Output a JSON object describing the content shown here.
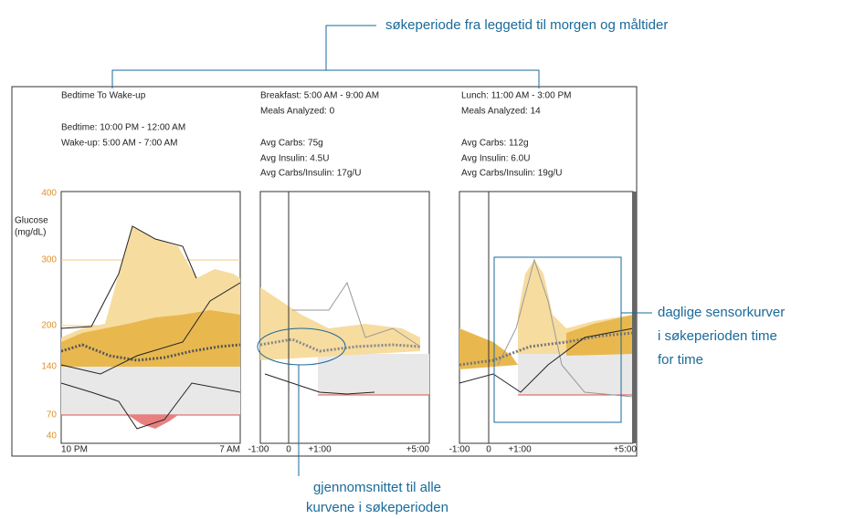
{
  "top_callout": "søkeperiode fra leggetid til morgen og måltider",
  "right_callout": {
    "lines": [
      "daglige sensorkurver",
      "i søkeperioden time",
      "for time"
    ]
  },
  "bottom_callout": {
    "lines": [
      "gjennomsnittet til alle",
      "kurvene i søkeperioden"
    ]
  },
  "y_axis": {
    "label_lines": [
      "Glucose",
      "(mg/dL)"
    ],
    "ticks": [
      "400",
      "300",
      "200",
      "140",
      "70",
      "40"
    ]
  },
  "panels": [
    {
      "lines": [
        "Bedtime To Wake-up",
        "Bedtime: 10:00 PM - 12:00 AM",
        "Wake-up: 5:00 AM - 7:00 AM"
      ],
      "x_labels": [
        "10 PM",
        "7 AM"
      ]
    },
    {
      "lines": [
        "Breakfast: 5:00 AM - 9:00 AM",
        "Meals Analyzed: 0",
        "Avg Carbs: 75g",
        "Avg Insulin: 4.5U",
        "Avg Carbs/Insulin: 17g/U"
      ],
      "x_labels": [
        "-1:00",
        "0",
        "+1:00",
        "+5:00"
      ]
    },
    {
      "lines": [
        "Lunch: 11:00 AM - 3:00 PM",
        "Meals Analyzed: 14",
        "Avg Carbs: 112g",
        "Avg Insulin: 6.0U",
        "Avg Carbs/Insulin: 19g/U"
      ],
      "x_labels": [
        "-1:00",
        "0",
        "+1:00",
        "+5:00"
      ]
    }
  ]
}
